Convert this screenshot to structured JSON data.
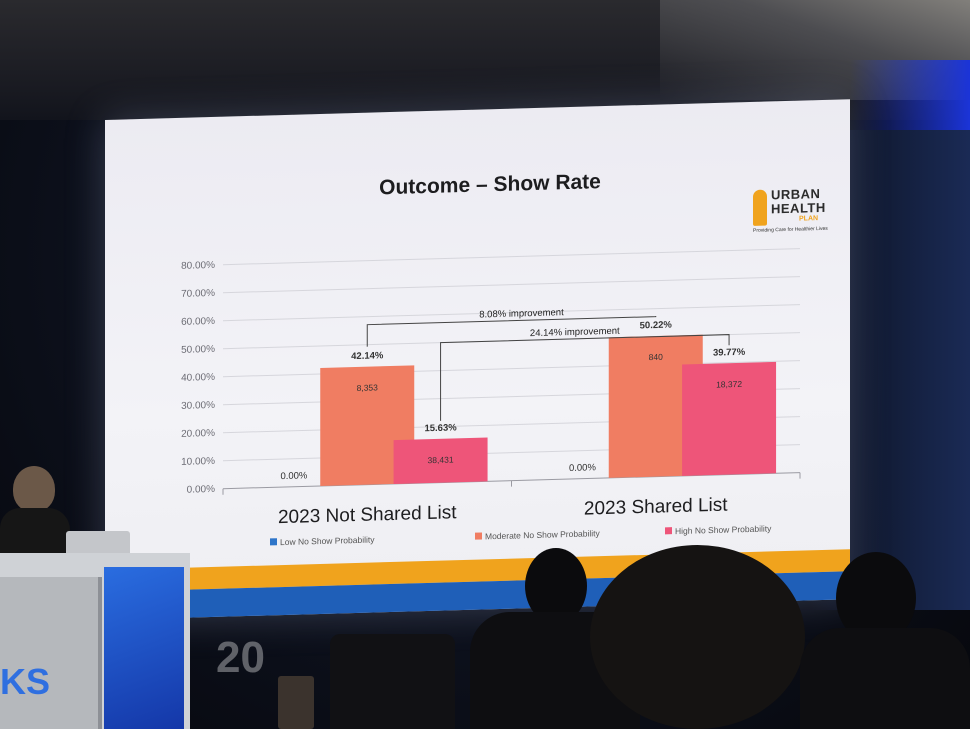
{
  "slide": {
    "title": "Outcome – Show Rate",
    "logo": {
      "line1": "URBAN",
      "line2": "HEALTH",
      "line3": "PLAN",
      "tagline": "Providing Care for Healthier Lives"
    }
  },
  "chart_data": {
    "type": "bar",
    "title": "Outcome – Show Rate",
    "categories": [
      "2023 Not Shared List",
      "2023 Shared List"
    ],
    "series": [
      {
        "name": "Low No Show Probability",
        "color": "#2e75c9",
        "values": [
          0,
          0
        ],
        "value_labels": [
          "0.00%",
          "0.00%"
        ],
        "count_labels": [
          "",
          ""
        ]
      },
      {
        "name": "Moderate No Show Probability",
        "color": "#f07d62",
        "values": [
          42.14,
          50.22
        ],
        "value_labels": [
          "42.14%",
          "50.22%"
        ],
        "count_labels": [
          "8,353",
          "840"
        ]
      },
      {
        "name": "High No Show Probability",
        "color": "#ee5579",
        "values": [
          15.63,
          39.77
        ],
        "value_labels": [
          "15.63%",
          "39.77%"
        ],
        "count_labels": [
          "38,431",
          "18,372"
        ]
      }
    ],
    "yticks": [
      "0.00%",
      "10.00%",
      "20.00%",
      "30.00%",
      "40.00%",
      "50.00%",
      "60.00%",
      "70.00%",
      "80.00%"
    ],
    "ylim": [
      0,
      80
    ],
    "annotations": [
      "8.08% improvement",
      "24.14% improvement"
    ],
    "legend_position": "bottom",
    "grid": true
  },
  "colors": {
    "accent_orange": "#f0a31d",
    "accent_blue": "#1f5fb8"
  },
  "podium": {
    "brand": "KS",
    "number": "20"
  }
}
